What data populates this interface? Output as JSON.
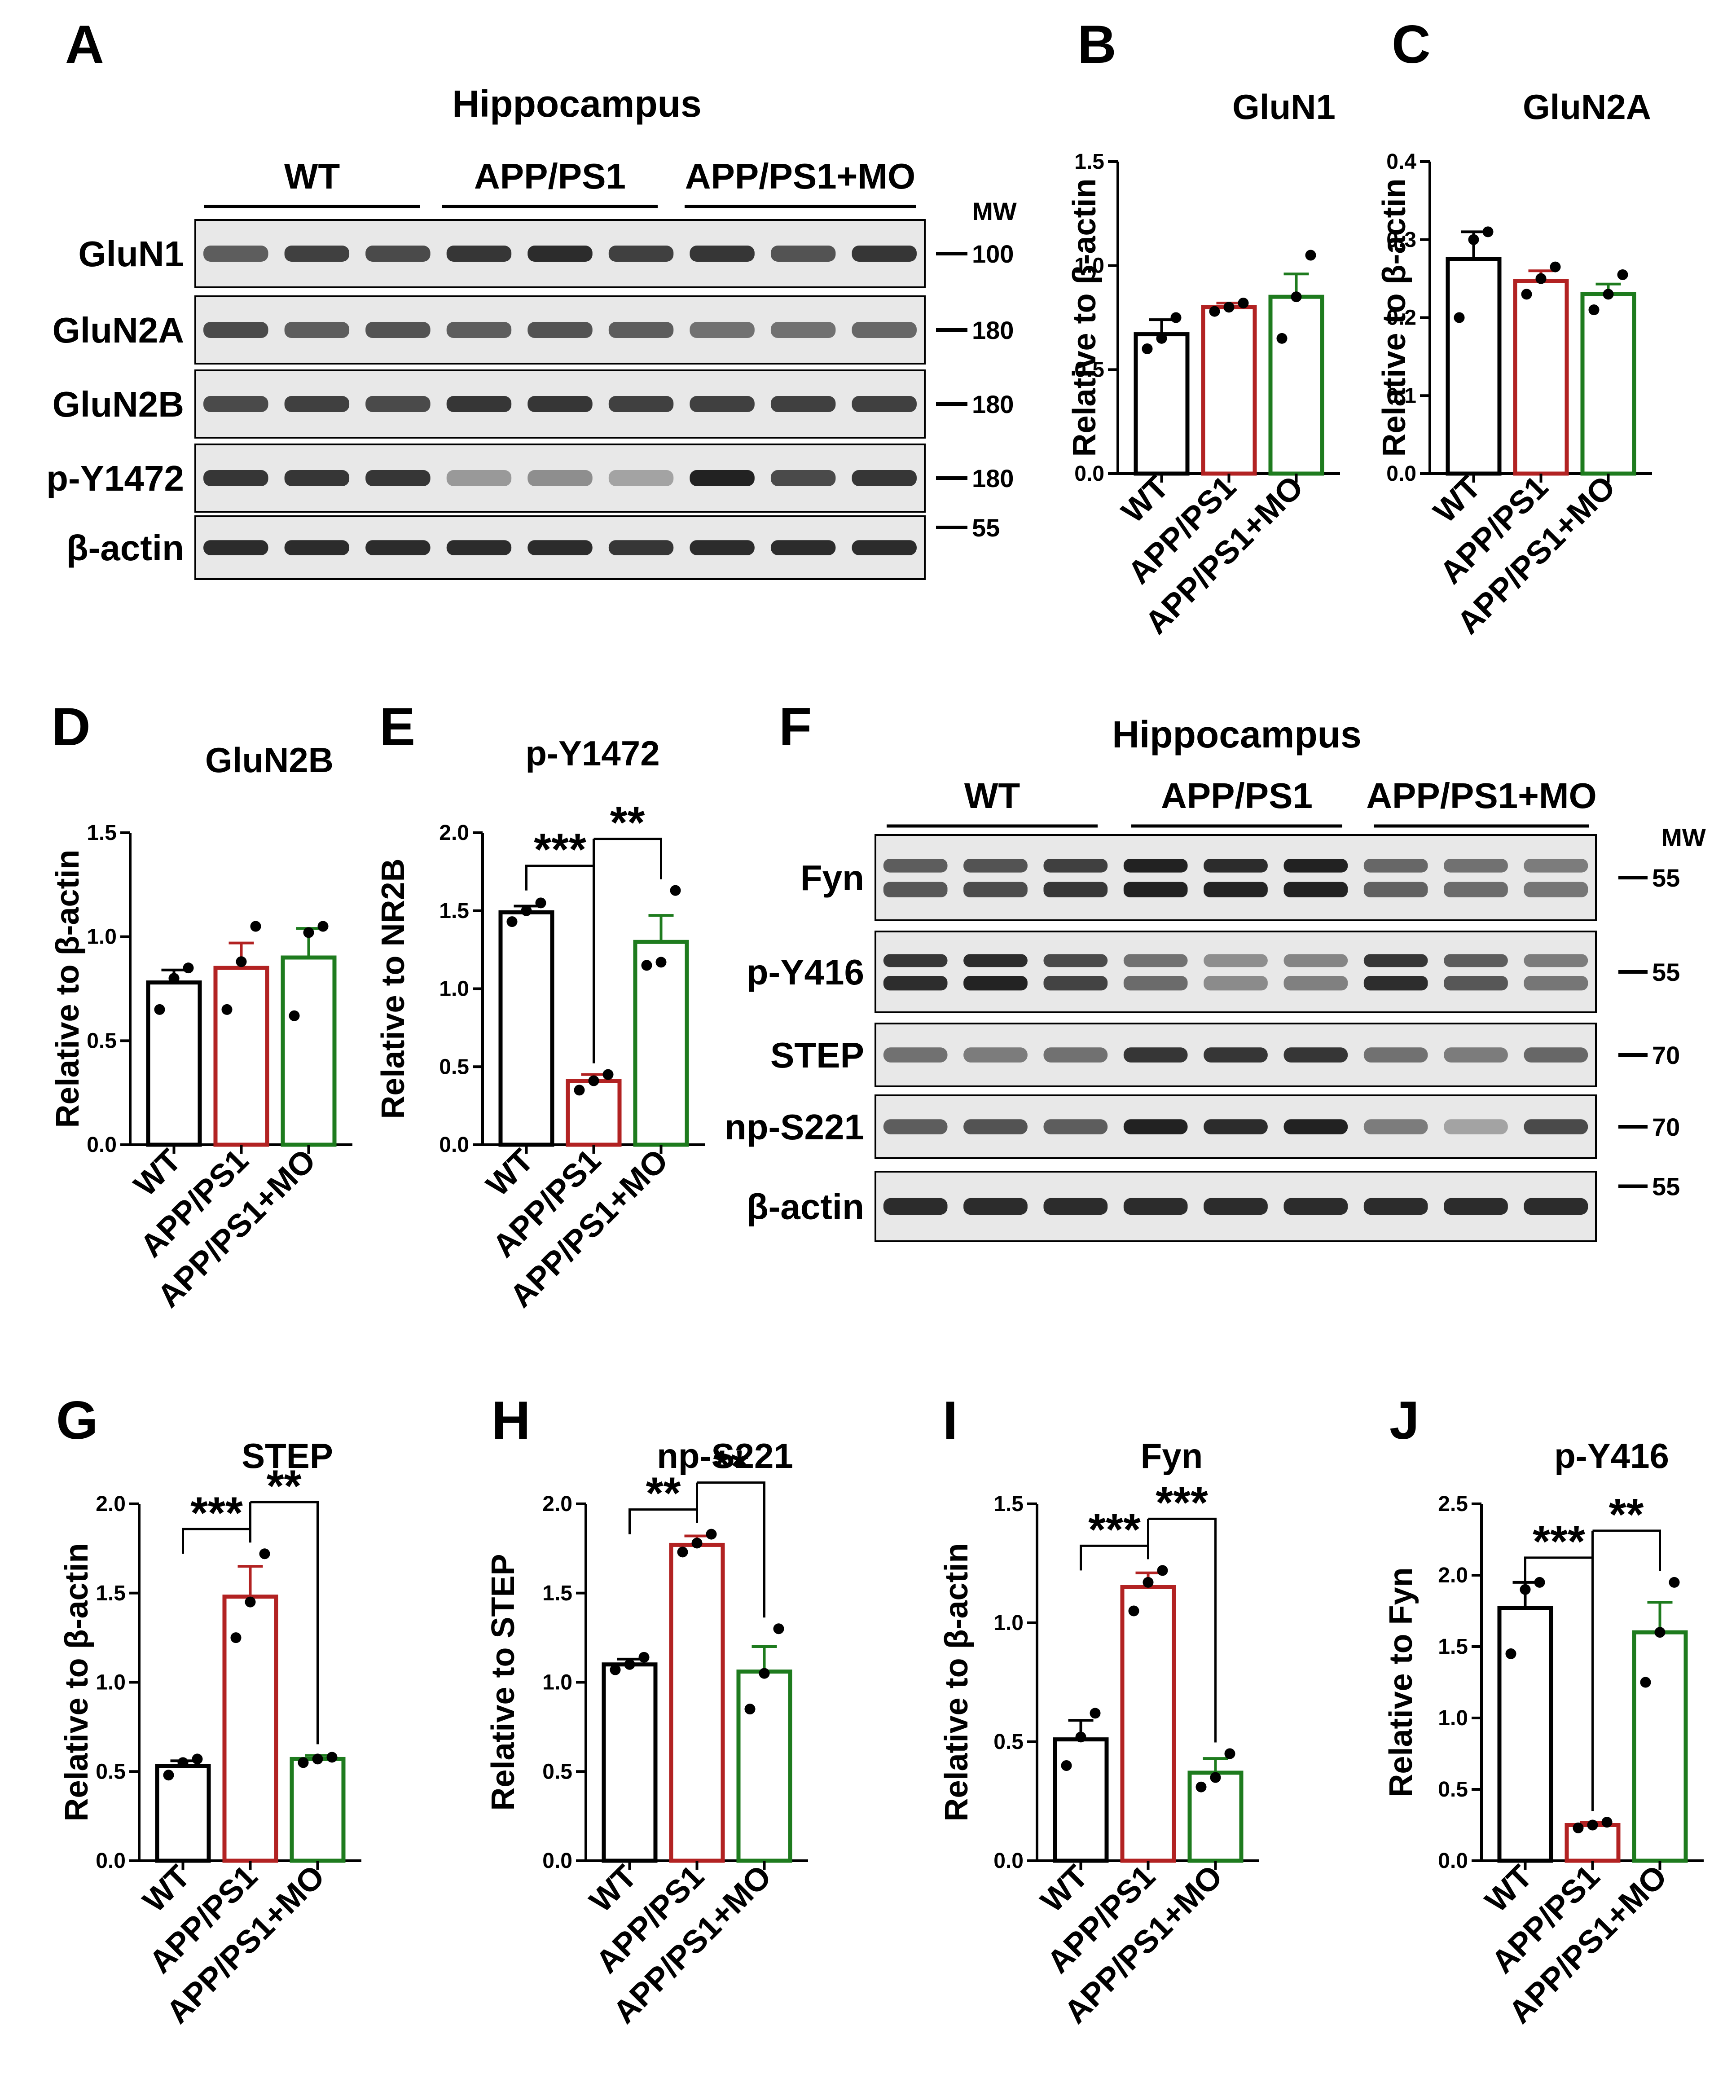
{
  "colors": {
    "WT": "#000000",
    "APP/PS1": "#b22222",
    "APP/PS1+MO": "#1e7b1e",
    "band": "#222222",
    "blot_bg": "#e8e8e8"
  },
  "groups": [
    "WT",
    "APP/PS1",
    "APP/PS1+MO"
  ],
  "blots": [
    {
      "panel": "A",
      "header": "Hippocampus",
      "group_labels": [
        "WT",
        "APP/PS1",
        "APP/PS1+MO"
      ],
      "mw_header": "MW",
      "rows": [
        {
          "label": "GluN1",
          "mw": "100",
          "band_intensity": [
            0.7,
            0.85,
            0.8,
            0.9,
            0.95,
            0.85,
            0.9,
            0.75,
            0.9
          ],
          "double": false
        },
        {
          "label": "GluN2A",
          "mw": "180",
          "band_intensity": [
            0.8,
            0.7,
            0.75,
            0.7,
            0.75,
            0.7,
            0.6,
            0.6,
            0.65
          ],
          "double": false
        },
        {
          "label": "GluN2B",
          "mw": "180",
          "band_intensity": [
            0.8,
            0.85,
            0.8,
            0.9,
            0.9,
            0.85,
            0.85,
            0.85,
            0.85
          ],
          "double": false
        },
        {
          "label": "p-Y1472",
          "mw": "180",
          "band_intensity": [
            0.9,
            0.9,
            0.9,
            0.4,
            0.45,
            0.35,
            1.0,
            0.8,
            0.9
          ],
          "double": false
        },
        {
          "label": "β-actin",
          "mw": "55",
          "band_intensity": [
            0.95,
            0.95,
            0.95,
            0.95,
            0.95,
            0.9,
            0.95,
            0.95,
            0.95
          ],
          "double": false
        }
      ]
    },
    {
      "panel": "F",
      "header": "Hippocampus",
      "group_labels": [
        "WT",
        "APP/PS1",
        "APP/PS1+MO"
      ],
      "mw_header": "MW",
      "rows": [
        {
          "label": "Fyn",
          "mw": "55",
          "band_intensity": [
            0.7,
            0.75,
            0.85,
            1.0,
            0.95,
            1.0,
            0.65,
            0.6,
            0.55
          ],
          "double": true
        },
        {
          "label": "p-Y416",
          "mw": "55",
          "band_intensity": [
            0.9,
            0.95,
            0.8,
            0.6,
            0.45,
            0.5,
            0.9,
            0.7,
            0.55
          ],
          "double": true
        },
        {
          "label": "STEP",
          "mw": "70",
          "band_intensity": [
            0.6,
            0.55,
            0.6,
            0.9,
            0.9,
            0.9,
            0.6,
            0.55,
            0.65
          ],
          "double": false
        },
        {
          "label": "np-S221",
          "mw": "70",
          "band_intensity": [
            0.7,
            0.75,
            0.7,
            1.0,
            0.95,
            1.0,
            0.55,
            0.35,
            0.8
          ],
          "double": false
        },
        {
          "label": "β-actin",
          "mw": "55",
          "band_intensity": [
            0.95,
            0.95,
            0.95,
            0.95,
            0.95,
            0.95,
            0.95,
            0.95,
            0.95
          ],
          "double": false
        }
      ]
    }
  ],
  "chart_data": [
    {
      "panel": "B",
      "type": "bar",
      "title": "GluN1",
      "ylabel": "Relative to β-actin",
      "categories": [
        "WT",
        "APP/PS1",
        "APP/PS1+MO"
      ],
      "values": [
        0.67,
        0.8,
        0.85
      ],
      "errors": [
        0.07,
        0.02,
        0.11
      ],
      "points": [
        [
          0.6,
          0.65,
          0.75
        ],
        [
          0.78,
          0.8,
          0.82
        ],
        [
          0.65,
          0.85,
          1.05
        ]
      ],
      "ylim": [
        0,
        1.5
      ],
      "yticks": [
        "0.0",
        "0.5",
        "1.0",
        "1.5"
      ],
      "significance": []
    },
    {
      "panel": "C",
      "type": "bar",
      "title": "GluN2A",
      "ylabel": "Relative to β-actin",
      "categories": [
        "WT",
        "APP/PS1",
        "APP/PS1+MO"
      ],
      "values": [
        0.275,
        0.247,
        0.23
      ],
      "errors": [
        0.035,
        0.013,
        0.013
      ],
      "points": [
        [
          0.2,
          0.3,
          0.31
        ],
        [
          0.23,
          0.25,
          0.265
        ],
        [
          0.21,
          0.23,
          0.255
        ]
      ],
      "ylim": [
        0,
        0.4
      ],
      "yticks": [
        "0.0",
        "0.1",
        "0.2",
        "0.3",
        "0.4"
      ],
      "significance": []
    },
    {
      "panel": "D",
      "type": "bar",
      "title": "GluN2B",
      "ylabel": "Relative to β-actin",
      "categories": [
        "WT",
        "APP/PS1",
        "APP/PS1+MO"
      ],
      "values": [
        0.78,
        0.85,
        0.9
      ],
      "errors": [
        0.06,
        0.12,
        0.14
      ],
      "points": [
        [
          0.65,
          0.8,
          0.85
        ],
        [
          0.65,
          0.88,
          1.05
        ],
        [
          0.62,
          1.02,
          1.05
        ]
      ],
      "ylim": [
        0,
        1.5
      ],
      "yticks": [
        "0.0",
        "0.5",
        "1.0",
        "1.5"
      ],
      "significance": []
    },
    {
      "panel": "E",
      "type": "bar",
      "title": "p-Y1472",
      "ylabel": "Relative to NR2B",
      "categories": [
        "WT",
        "APP/PS1",
        "APP/PS1+MO"
      ],
      "values": [
        1.49,
        0.41,
        1.3
      ],
      "errors": [
        0.04,
        0.04,
        0.17
      ],
      "points": [
        [
          1.43,
          1.5,
          1.55
        ],
        [
          0.35,
          0.41,
          0.45
        ],
        [
          1.15,
          1.17,
          1.63
        ]
      ],
      "ylim": [
        0,
        2.0
      ],
      "yticks": [
        "0.0",
        "0.5",
        "1.0",
        "1.5",
        "2.0"
      ],
      "significance": [
        {
          "from": 0,
          "to": 1,
          "label": "***"
        },
        {
          "from": 1,
          "to": 2,
          "label": "**"
        }
      ]
    },
    {
      "panel": "G",
      "type": "bar",
      "title": "STEP",
      "ylabel": "Relative to β-actin",
      "categories": [
        "WT",
        "APP/PS1",
        "APP/PS1+MO"
      ],
      "values": [
        0.53,
        1.48,
        0.57
      ],
      "errors": [
        0.03,
        0.17,
        0.02
      ],
      "points": [
        [
          0.48,
          0.55,
          0.57
        ],
        [
          1.25,
          1.45,
          1.72
        ],
        [
          0.55,
          0.57,
          0.58
        ]
      ],
      "ylim": [
        0,
        2.0
      ],
      "yticks": [
        "0.0",
        "0.5",
        "1.0",
        "1.5",
        "2.0"
      ],
      "significance": [
        {
          "from": 0,
          "to": 1,
          "label": "***"
        },
        {
          "from": 1,
          "to": 2,
          "label": "**"
        }
      ]
    },
    {
      "panel": "H",
      "type": "bar",
      "title": "np-S221",
      "ylabel": "Relative to STEP",
      "categories": [
        "WT",
        "APP/PS1",
        "APP/PS1+MO"
      ],
      "values": [
        1.1,
        1.77,
        1.06
      ],
      "errors": [
        0.03,
        0.05,
        0.14
      ],
      "points": [
        [
          1.07,
          1.1,
          1.14
        ],
        [
          1.73,
          1.78,
          1.83
        ],
        [
          0.85,
          1.05,
          1.3
        ]
      ],
      "ylim": [
        0,
        2.0
      ],
      "yticks": [
        "0.0",
        "0.5",
        "1.0",
        "1.5",
        "2.0"
      ],
      "significance": [
        {
          "from": 0,
          "to": 1,
          "label": "**"
        },
        {
          "from": 1,
          "to": 2,
          "label": "**"
        }
      ]
    },
    {
      "panel": "I",
      "type": "bar",
      "title": "Fyn",
      "ylabel": "Relative to β-actin",
      "categories": [
        "WT",
        "APP/PS1",
        "APP/PS1+MO"
      ],
      "values": [
        0.51,
        1.15,
        0.37
      ],
      "errors": [
        0.08,
        0.06,
        0.06
      ],
      "points": [
        [
          0.4,
          0.52,
          0.62
        ],
        [
          1.05,
          1.17,
          1.22
        ],
        [
          0.31,
          0.35,
          0.45
        ]
      ],
      "ylim": [
        0,
        1.5
      ],
      "yticks": [
        "0.0",
        "0.5",
        "1.0",
        "1.5"
      ],
      "significance": [
        {
          "from": 0,
          "to": 1,
          "label": "***"
        },
        {
          "from": 1,
          "to": 2,
          "label": "***"
        }
      ]
    },
    {
      "panel": "J",
      "type": "bar",
      "title": "p-Y416",
      "ylabel": "Relative to Fyn",
      "categories": [
        "WT",
        "APP/PS1",
        "APP/PS1+MO"
      ],
      "values": [
        1.77,
        0.25,
        1.6
      ],
      "errors": [
        0.18,
        0.02,
        0.21
      ],
      "points": [
        [
          1.45,
          1.9,
          1.95
        ],
        [
          0.23,
          0.25,
          0.27
        ],
        [
          1.25,
          1.6,
          1.95
        ]
      ],
      "ylim": [
        0,
        2.5
      ],
      "yticks": [
        "0.0",
        "0.5",
        "1.0",
        "1.5",
        "2.0",
        "2.5"
      ],
      "significance": [
        {
          "from": 0,
          "to": 1,
          "label": "***"
        },
        {
          "from": 1,
          "to": 2,
          "label": "**"
        }
      ]
    }
  ]
}
